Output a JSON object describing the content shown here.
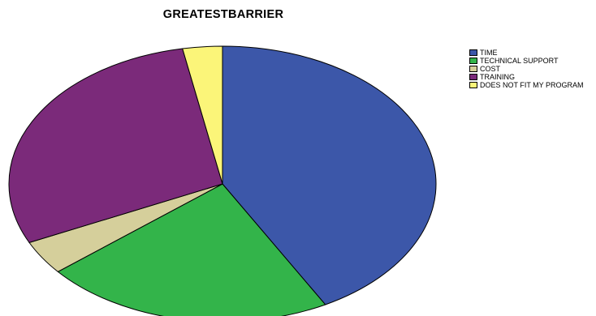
{
  "chart_data": {
    "type": "pie",
    "title": "GREATESTBARRIER",
    "legend_position": "top-right",
    "categories": [
      "TIME",
      "TECHNICAL SUPPORT",
      "COST",
      "TRAINING",
      "DOES NOT FIT MY PROGRAM"
    ],
    "values": [
      42,
      22,
      4,
      29,
      3
    ],
    "colors": [
      "#3c57a9",
      "#33b44a",
      "#d5cf9b",
      "#7b2a7a",
      "#fbf579"
    ]
  }
}
